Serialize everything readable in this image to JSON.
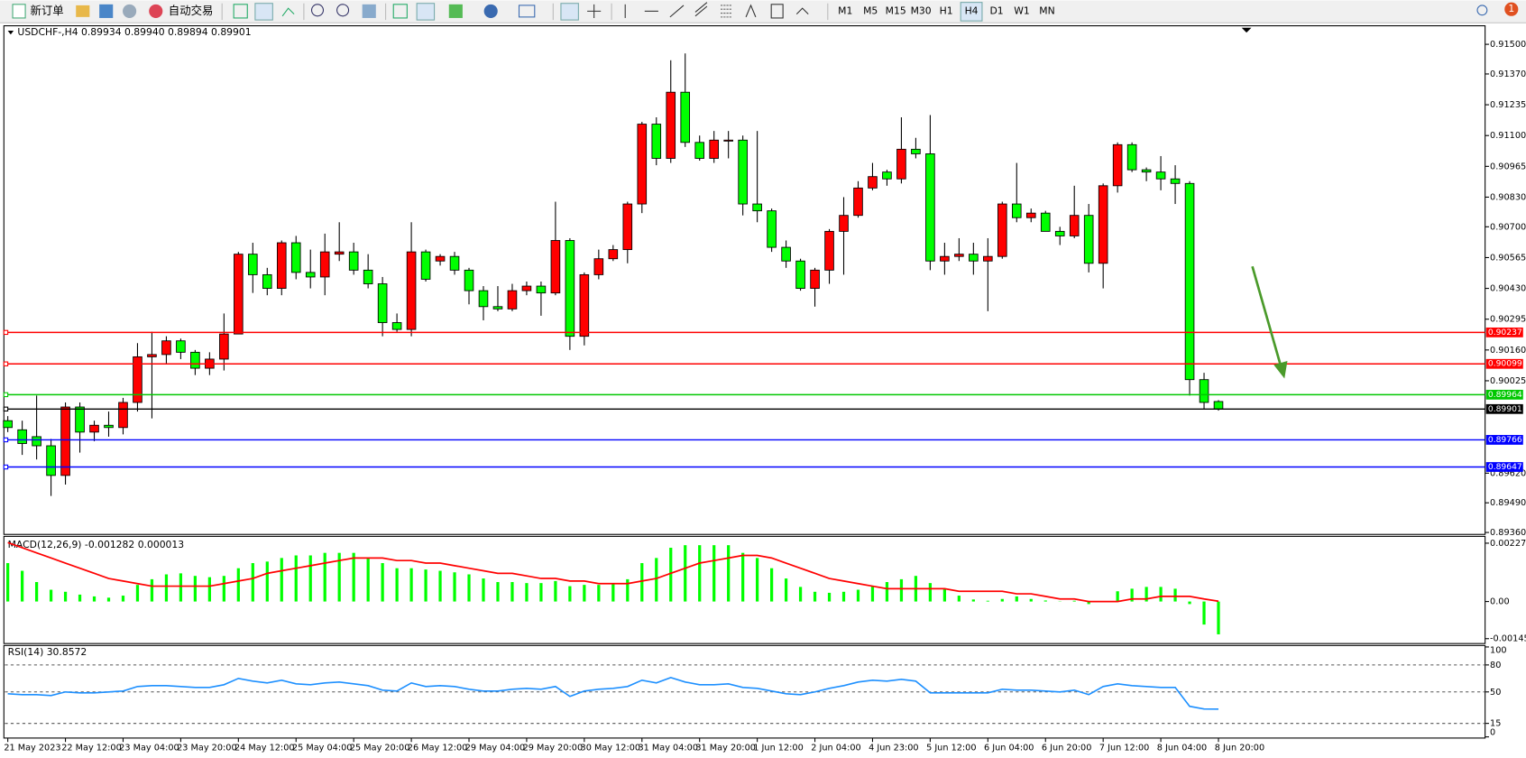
{
  "toolbar": {
    "new_order": "新订单",
    "auto_trading": "自动交易",
    "timeframes": [
      "M1",
      "M5",
      "M15",
      "M30",
      "H1",
      "H4",
      "D1",
      "W1",
      "MN"
    ],
    "active_timeframe": 5,
    "notifications": "1"
  },
  "chart_data": [
    {
      "type": "candlestick",
      "title": "USDCHF-,H4  0.89934 0.89940 0.89894 0.89901",
      "categories": [
        "21 May 2023",
        null,
        null,
        null,
        "22 May 12:00",
        null,
        null,
        null,
        "23 May 04:00",
        null,
        null,
        null,
        "23 May 20:00",
        null,
        null,
        null,
        "24 May 12:00",
        null,
        null,
        null,
        "25 May 04:00",
        null,
        null,
        null,
        "25 May 20:00",
        null,
        null,
        null,
        "26 May 12:00",
        null,
        null,
        null,
        "29 May 04:00",
        null,
        null,
        null,
        "29 May 20:00",
        null,
        null,
        null,
        "30 May 12:00",
        null,
        null,
        null,
        "31 May 04:00",
        null,
        null,
        null,
        "31 May 20:00",
        null,
        null,
        null,
        "1 Jun 12:00",
        null,
        null,
        null,
        "2 Jun 04:00",
        null,
        null,
        null,
        "4 Jun 23:00",
        null,
        null,
        null,
        "5 Jun 12:00",
        null,
        null,
        null,
        "6 Jun 04:00",
        null,
        null,
        null,
        "6 Jun 20:00",
        null,
        null,
        null,
        "7 Jun 12:00",
        null,
        null,
        null,
        "8 Jun 04:00",
        null,
        null,
        null,
        "8 Jun 20:00"
      ],
      "open": [
        0.8985,
        0.8981,
        0.8978,
        0.8974,
        0.8961,
        0.8991,
        0.898,
        0.8983,
        0.8982,
        0.8993,
        0.9013,
        0.9014,
        0.902,
        0.9015,
        0.9008,
        0.9012,
        0.9023,
        0.9058,
        0.9049,
        0.9043,
        0.9063,
        0.905,
        0.9048,
        0.9058,
        0.9059,
        0.9051,
        0.9045,
        0.9028,
        0.9025,
        0.9059,
        0.9055,
        0.9057,
        0.9051,
        0.9042,
        0.9035,
        0.9034,
        0.9042,
        0.9044,
        0.9041,
        0.9064,
        0.9022,
        0.9049,
        0.9056,
        0.906,
        0.908,
        0.9115,
        0.91,
        0.9129,
        0.9107,
        0.91,
        0.9108,
        0.9108,
        0.908,
        0.9077,
        0.9061,
        0.9055,
        0.9043,
        0.9051,
        0.9068,
        0.9075,
        0.9087,
        0.9094,
        0.9091,
        0.9104,
        0.9102,
        0.9055,
        0.9057,
        0.9058,
        0.9055,
        0.9057,
        0.908,
        0.9074,
        0.9076,
        0.9068,
        0.9066,
        0.9075,
        0.9054,
        0.9088,
        0.9106,
        0.9095,
        0.9094,
        0.9091,
        0.9089,
        0.9003,
        0.89934
      ],
      "high": [
        0.8987,
        0.8985,
        0.8996,
        0.8977,
        0.8993,
        0.8993,
        0.8985,
        0.8989,
        0.8995,
        0.9019,
        0.9024,
        0.9022,
        0.9021,
        0.9016,
        0.9015,
        0.9032,
        0.9059,
        0.9063,
        0.9052,
        0.9064,
        0.9066,
        0.906,
        0.9067,
        0.9072,
        0.9063,
        0.9058,
        0.9048,
        0.9032,
        0.9072,
        0.906,
        0.9058,
        0.9059,
        0.9052,
        0.9044,
        0.9044,
        0.9045,
        0.9046,
        0.9046,
        0.9081,
        0.9065,
        0.905,
        0.906,
        0.9062,
        0.9081,
        0.9116,
        0.9118,
        0.9143,
        0.9146,
        0.911,
        0.9112,
        0.9112,
        0.911,
        0.9112,
        0.9078,
        0.9064,
        0.9056,
        0.9052,
        0.9069,
        0.9083,
        0.909,
        0.9098,
        0.9095,
        0.9118,
        0.9109,
        0.9119,
        0.9063,
        0.9065,
        0.9063,
        0.9065,
        0.9081,
        0.9098,
        0.9078,
        0.9077,
        0.907,
        0.9088,
        0.908,
        0.9089,
        0.9107,
        0.9107,
        0.9096,
        0.9101,
        0.9097,
        0.909,
        0.9006,
        0.8994
      ],
      "low": [
        0.898,
        0.897,
        0.8968,
        0.8952,
        0.8957,
        0.8971,
        0.8976,
        0.8978,
        0.8979,
        0.8989,
        0.8986,
        0.901,
        0.9012,
        0.9005,
        0.9005,
        0.9007,
        0.9023,
        0.9041,
        0.904,
        0.904,
        0.9047,
        0.9043,
        0.904,
        0.9055,
        0.9049,
        0.9043,
        0.9022,
        0.9024,
        0.9022,
        0.9046,
        0.9053,
        0.9049,
        0.9036,
        0.9029,
        0.9033,
        0.9033,
        0.904,
        0.9031,
        0.904,
        0.9016,
        0.9018,
        0.9047,
        0.9055,
        0.9054,
        0.9076,
        0.9097,
        0.9098,
        0.9105,
        0.9099,
        0.9098,
        0.91,
        0.9075,
        0.9072,
        0.9059,
        0.9052,
        0.9042,
        0.9035,
        0.9045,
        0.9049,
        0.9074,
        0.9086,
        0.9088,
        0.9089,
        0.91,
        0.9051,
        0.9049,
        0.9055,
        0.9049,
        0.9033,
        0.9056,
        0.9072,
        0.9072,
        0.9068,
        0.9062,
        0.9065,
        0.905,
        0.9043,
        0.9085,
        0.9094,
        0.909,
        0.9086,
        0.908,
        0.8996,
        0.899,
        0.89894
      ],
      "close": [
        0.8982,
        0.8975,
        0.8974,
        0.8961,
        0.8991,
        0.898,
        0.8983,
        0.8982,
        0.8993,
        0.9013,
        0.9014,
        0.902,
        0.9015,
        0.9008,
        0.9012,
        0.9023,
        0.9058,
        0.9049,
        0.9043,
        0.9063,
        0.905,
        0.9048,
        0.9059,
        0.9059,
        0.9051,
        0.9045,
        0.9028,
        0.9025,
        0.9059,
        0.9047,
        0.9057,
        0.9051,
        0.9042,
        0.9035,
        0.9034,
        0.9042,
        0.9044,
        0.9041,
        0.9064,
        0.9022,
        0.9049,
        0.9056,
        0.906,
        0.908,
        0.9115,
        0.91,
        0.9129,
        0.9107,
        0.91,
        0.9108,
        0.9108,
        0.908,
        0.9077,
        0.9061,
        0.9055,
        0.9043,
        0.9051,
        0.9068,
        0.9075,
        0.9087,
        0.9092,
        0.9091,
        0.9104,
        0.9102,
        0.9055,
        0.9057,
        0.9058,
        0.9055,
        0.9057,
        0.908,
        0.9074,
        0.9076,
        0.9068,
        0.9066,
        0.9075,
        0.9054,
        0.9088,
        0.9106,
        0.9095,
        0.9094,
        0.9091,
        0.9089,
        0.9003,
        0.8993,
        0.89901
      ],
      "up_color": "#ff0000",
      "down_color": "#00ff00",
      "ylim": [
        0.8936,
        0.915
      ],
      "yticks": [
        {
          "value": 0.915,
          "label": "0.91500"
        },
        {
          "value": 0.9137,
          "label": "0.91370"
        },
        0.91235,
        {
          "value": 0.911,
          "label": "0.91100"
        },
        0.90965,
        {
          "value": 0.9083,
          "label": "0.90830"
        },
        {
          "value": 0.907,
          "label": "0.90700"
        },
        0.90565,
        {
          "value": 0.9043,
          "label": "0.90430"
        },
        0.90295,
        {
          "value": 0.9016,
          "label": "0.90160"
        },
        0.90025,
        {
          "value": 0.8962,
          "label": "0.89620"
        },
        {
          "value": 0.8949,
          "label": "0.89490"
        },
        {
          "value": 0.8936,
          "label": "0.89360"
        }
      ],
      "levels": [
        {
          "value": 0.90237,
          "color": "#ff0000"
        },
        {
          "value": 0.90099,
          "color": "#ff0000"
        },
        {
          "value": 0.89964,
          "color": "#00c800"
        },
        {
          "value": 0.89901,
          "color": "#000000"
        },
        {
          "value": 0.89766,
          "color": "#0000ff"
        },
        {
          "value": 0.89647,
          "color": "#0000ff"
        }
      ]
    },
    {
      "type": "macd",
      "title": "MACD(12,26,9) -0.001282 0.000013",
      "histogram": [
        0.0015,
        0.0012,
        0.00076,
        0.00046,
        0.00038,
        0.00027,
        0.0002,
        0.00015,
        0.00023,
        0.00065,
        0.00087,
        0.00106,
        0.0011,
        0.001,
        0.00095,
        0.001,
        0.0013,
        0.0015,
        0.00156,
        0.0017,
        0.0018,
        0.0018,
        0.0019,
        0.0019,
        0.0019,
        0.0017,
        0.0015,
        0.0013,
        0.0013,
        0.00125,
        0.0012,
        0.00114,
        0.00106,
        0.0009,
        0.00076,
        0.00076,
        0.00072,
        0.00072,
        0.0008,
        0.0006,
        0.00065,
        0.00065,
        0.00072,
        0.00087,
        0.0015,
        0.0017,
        0.0021,
        0.0022,
        0.0022,
        0.0022,
        0.0022,
        0.0019,
        0.0017,
        0.0013,
        0.0009,
        0.00057,
        0.00038,
        0.00034,
        0.00038,
        0.00046,
        0.0006,
        0.00076,
        0.00087,
        0.001,
        0.00072,
        0.0005,
        0.00023,
        8e-05,
        3e-05,
        0.0001,
        0.0002,
        0.0001,
        4e-05,
        1e-05,
        3e-05,
        -0.0001,
        2e-05,
        0.0004,
        0.0005,
        0.00057,
        0.00057,
        0.0005,
        -0.0001,
        -0.0009,
        -0.001282
      ],
      "signal": [
        0.0023,
        0.0021,
        0.0019,
        0.0017,
        0.0015,
        0.0013,
        0.0011,
        0.0009,
        0.0008,
        0.0007,
        0.0006,
        0.0006,
        0.0006,
        0.0006,
        0.0006,
        0.0007,
        0.0008,
        0.0009,
        0.0011,
        0.0012,
        0.0013,
        0.0014,
        0.0015,
        0.0016,
        0.0017,
        0.0017,
        0.0017,
        0.0016,
        0.0016,
        0.0015,
        0.0015,
        0.0014,
        0.0013,
        0.0012,
        0.0011,
        0.0011,
        0.001,
        0.0009,
        0.0009,
        0.0008,
        0.0008,
        0.0007,
        0.0007,
        0.0007,
        0.0008,
        0.0009,
        0.0011,
        0.0013,
        0.0015,
        0.0016,
        0.0017,
        0.0018,
        0.0018,
        0.0017,
        0.0015,
        0.0013,
        0.0011,
        0.0009,
        0.0008,
        0.0007,
        0.0006,
        0.0005,
        0.0005,
        0.0005,
        0.0005,
        0.0005,
        0.0004,
        0.0004,
        0.0004,
        0.0004,
        0.0003,
        0.0003,
        0.0002,
        0.0001,
        0.0001,
        0,
        0,
        0,
        0.0001,
        0.0001,
        0.0002,
        0.0002,
        0.0002,
        0.0001,
        1.3e-05
      ],
      "histogram_color": "#00ff00",
      "signal_color": "#ff0000",
      "ylim": [
        -0.001451,
        0.002278
      ],
      "yticks": [
        0.002278,
        {
          "value": 0,
          "label": "0.00"
        },
        -0.001451
      ]
    },
    {
      "type": "line",
      "title": "RSI(14) 30.8572",
      "values": [
        48,
        47,
        47,
        46,
        50,
        49,
        49,
        50,
        51,
        56,
        57,
        57,
        56,
        55,
        55,
        58,
        65,
        62,
        60,
        63,
        59,
        58,
        60,
        61,
        59,
        57,
        52,
        51,
        60,
        56,
        57,
        56,
        53,
        51,
        51,
        53,
        54,
        53,
        56,
        45,
        51,
        53,
        54,
        56,
        63,
        60,
        66,
        61,
        58,
        58,
        59,
        55,
        54,
        51,
        48,
        47,
        50,
        54,
        57,
        61,
        63,
        62,
        64,
        62,
        49,
        49,
        49,
        49,
        49,
        53,
        52,
        52,
        51,
        50,
        52,
        47,
        56,
        59,
        57,
        56,
        55,
        55,
        34,
        31,
        30.8572
      ],
      "color": "#1e90ff",
      "ylim": [
        0,
        100
      ],
      "yticks": [
        100,
        80,
        50,
        15,
        0
      ]
    }
  ]
}
